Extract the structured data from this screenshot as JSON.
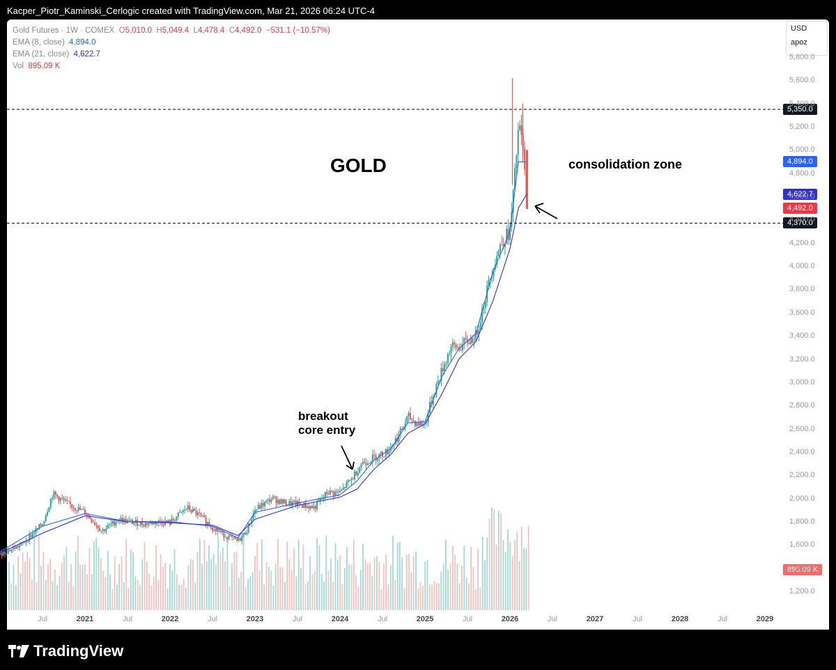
{
  "header": "Kacper_Piotr_Kaminski_Cerlogic created with TradingView.com, Mar 21, 2026 06:24 UTC-4",
  "legend": {
    "symbol": "Gold Futures · 1W · COMEX",
    "o_label": "O",
    "o": "5,010.0",
    "h_label": "H",
    "h": "5,049.4",
    "l_label": "L",
    "l": "4,478.4",
    "c_label": "C",
    "c": "4,492.0",
    "chg": "−531.1 (−10.57%)",
    "ema8_label": "EMA (8, close)",
    "ema8": "4,894.0",
    "ema21_label": "EMA (21, close)",
    "ema21": "4,622.7",
    "vol_label": "Vol",
    "vol": "895.09 K"
  },
  "currency": {
    "label": "USD",
    "sub": "apoz"
  },
  "price_labels": {
    "line_upper": "5,350.0",
    "ema8": "4,894.0",
    "ema21": "4,622.7",
    "last": "4,492.0",
    "line_lower": "4,370.0",
    "volume": "895.09 K"
  },
  "annotations": {
    "title": "GOLD",
    "consolidation": "consolidation zone",
    "breakout_line1": "breakout",
    "breakout_line2": "core entry"
  },
  "footer": {
    "brand": "TradingView"
  },
  "colors": {
    "up": "#26a69a",
    "down": "#ef5350",
    "ema8": "#2962ff",
    "ema21": "#3030d0",
    "last": "#f23645"
  },
  "chart_data": {
    "type": "line",
    "title": "Gold Futures · 1W · COMEX",
    "xlabel": "",
    "ylabel": "",
    "ylim": [
      1200,
      5800
    ],
    "yticks": [
      "1,200.0",
      "1,400.0",
      "1,600.0",
      "1,800.0",
      "2,000.0",
      "2,200.0",
      "2,400.0",
      "2,600.0",
      "2,800.0",
      "3,000.0",
      "3,200.0",
      "3,400.0",
      "3,600.0",
      "3,800.0",
      "4,000.0",
      "4,200.0",
      "4,400.0",
      "4,600.0",
      "4,800.0",
      "5,000.0",
      "5,200.0",
      "5,400.0",
      "5,600.0",
      "5,800.0"
    ],
    "xticks": [
      {
        "label": "Jul",
        "t": 2020.5,
        "year": false
      },
      {
        "label": "2021",
        "t": 2021.0,
        "year": true
      },
      {
        "label": "Jul",
        "t": 2021.5,
        "year": false
      },
      {
        "label": "2022",
        "t": 2022.0,
        "year": true
      },
      {
        "label": "Jul",
        "t": 2022.5,
        "year": false
      },
      {
        "label": "2023",
        "t": 2023.0,
        "year": true
      },
      {
        "label": "Jul",
        "t": 2023.5,
        "year": false
      },
      {
        "label": "2024",
        "t": 2024.0,
        "year": true
      },
      {
        "label": "Jul",
        "t": 2024.5,
        "year": false
      },
      {
        "label": "2025",
        "t": 2025.0,
        "year": true
      },
      {
        "label": "Jul",
        "t": 2025.5,
        "year": false
      },
      {
        "label": "2026",
        "t": 2026.0,
        "year": true
      },
      {
        "label": "Jul",
        "t": 2026.5,
        "year": false
      },
      {
        "label": "2027",
        "t": 2027.0,
        "year": true
      },
      {
        "label": "Jul",
        "t": 2027.5,
        "year": false
      },
      {
        "label": "2028",
        "t": 2028.0,
        "year": true
      },
      {
        "label": "Jul",
        "t": 2028.5,
        "year": false
      },
      {
        "label": "2029",
        "t": 2029.0,
        "year": true
      }
    ],
    "horizontal_levels": [
      5350.0,
      4370.0
    ],
    "series": [
      {
        "kind": "close",
        "t": [
          2020.0,
          2020.25,
          2020.5,
          2020.62,
          2020.8,
          2021.0,
          2021.2,
          2021.4,
          2021.5,
          2021.7,
          2021.9,
          2022.0,
          2022.2,
          2022.35,
          2022.5,
          2022.65,
          2022.8,
          2022.9,
          2023.0,
          2023.2,
          2023.35,
          2023.5,
          2023.7,
          2023.85,
          2024.0,
          2024.15,
          2024.25,
          2024.4,
          2024.55,
          2024.7,
          2024.8,
          2024.9,
          2025.0,
          2025.1,
          2025.2,
          2025.3,
          2025.4,
          2025.5,
          2025.6,
          2025.7,
          2025.8,
          2025.9,
          2026.0,
          2026.05,
          2026.1,
          2026.15,
          2026.2
        ],
        "values": [
          1520,
          1600,
          1780,
          2040,
          1950,
          1880,
          1720,
          1820,
          1800,
          1780,
          1800,
          1790,
          1920,
          1850,
          1750,
          1680,
          1630,
          1720,
          1900,
          2000,
          1960,
          1950,
          1920,
          2050,
          2050,
          2180,
          2300,
          2350,
          2400,
          2550,
          2700,
          2650,
          2640,
          2900,
          3100,
          3300,
          3300,
          3350,
          3400,
          3700,
          4000,
          4200,
          4300,
          4700,
          5200,
          5050,
          4492
        ]
      },
      {
        "name": "EMA (8, close)",
        "t": [
          2020.0,
          2020.5,
          2021.0,
          2021.5,
          2022.0,
          2022.5,
          2022.8,
          2023.0,
          2023.5,
          2024.0,
          2024.2,
          2024.4,
          2024.6,
          2024.8,
          2025.0,
          2025.2,
          2025.4,
          2025.6,
          2025.8,
          2026.0,
          2026.1,
          2026.2
        ],
        "values": [
          1540,
          1760,
          1870,
          1800,
          1800,
          1760,
          1660,
          1880,
          1960,
          2030,
          2150,
          2330,
          2430,
          2650,
          2660,
          3050,
          3290,
          3420,
          3950,
          4300,
          4900,
          4894
        ]
      },
      {
        "name": "EMA (21, close)",
        "t": [
          2020.0,
          2020.5,
          2021.0,
          2021.5,
          2022.0,
          2022.5,
          2022.8,
          2023.0,
          2023.5,
          2024.0,
          2024.2,
          2024.4,
          2024.6,
          2024.8,
          2025.0,
          2025.2,
          2025.4,
          2025.6,
          2025.8,
          2026.0,
          2026.1,
          2026.2
        ],
        "values": [
          1530,
          1700,
          1850,
          1800,
          1790,
          1770,
          1680,
          1820,
          1940,
          2010,
          2080,
          2250,
          2380,
          2560,
          2640,
          2900,
          3200,
          3350,
          3700,
          4150,
          4500,
          4622.7
        ]
      }
    ]
  }
}
